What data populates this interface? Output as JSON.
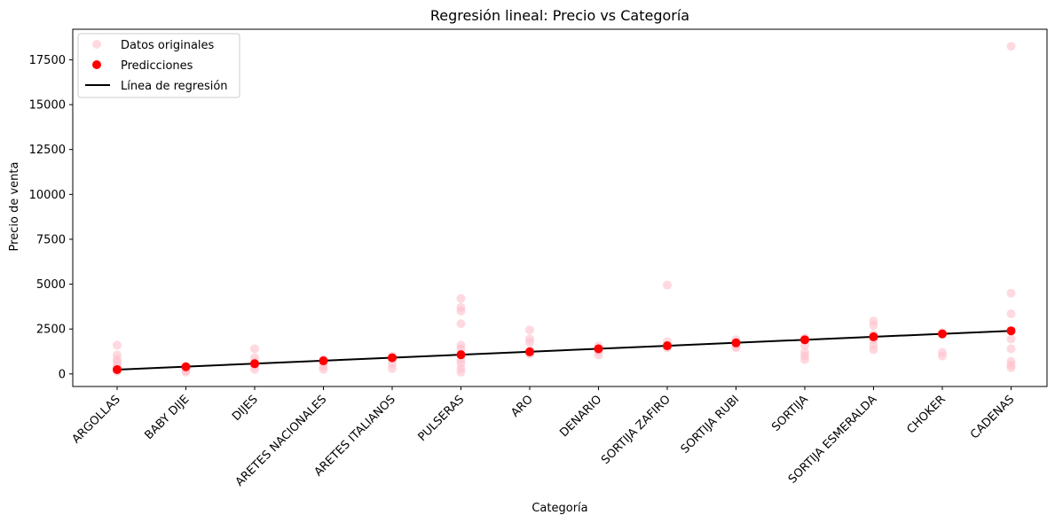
{
  "chart_data": {
    "type": "scatter",
    "title": "Regresión lineal: Precio vs Categoría",
    "xlabel": "Categoría",
    "ylabel": "Precio de venta",
    "categories": [
      "ARGOLLAS",
      "BABY DIJE",
      "DIJES",
      "ARETES NACIONALES",
      "ARETES ITALIANOS",
      "PULSERAS",
      "ARO",
      "DENARIO",
      "SORTIJA ZAFIRO",
      "SORTIJA RUBI",
      "SORTIJA",
      "SORTIJA ESMERALDA",
      "CHOKER",
      "CADENAS"
    ],
    "ylim": [
      -700,
      19200
    ],
    "yticks": [
      0,
      2500,
      5000,
      7500,
      10000,
      12500,
      15000,
      17500
    ],
    "ytick_labels": [
      "0",
      "2500",
      "5000",
      "7500",
      "10000",
      "12500",
      "15000",
      "17500"
    ],
    "grid": false,
    "legend_position": "top-left",
    "colors": {
      "original": "#ffc0cb",
      "prediction": "#ff0000",
      "line": "#000000"
    },
    "series": [
      {
        "name": "Datos originales",
        "kind": "scatter",
        "points": [
          [
            "ARGOLLAS",
            1600
          ],
          [
            "ARGOLLAS",
            1050
          ],
          [
            "ARGOLLAS",
            800
          ],
          [
            "ARGOLLAS",
            650
          ],
          [
            "ARGOLLAS",
            450
          ],
          [
            "ARGOLLAS",
            300
          ],
          [
            "ARGOLLAS",
            150
          ],
          [
            "BABY DIJE",
            420
          ],
          [
            "BABY DIJE",
            300
          ],
          [
            "BABY DIJE",
            180
          ],
          [
            "BABY DIJE",
            100
          ],
          [
            "DIJES",
            1400
          ],
          [
            "DIJES",
            900
          ],
          [
            "DIJES",
            650
          ],
          [
            "DIJES",
            450
          ],
          [
            "DIJES",
            250
          ],
          [
            "ARETES NACIONALES",
            800
          ],
          [
            "ARETES NACIONALES",
            600
          ],
          [
            "ARETES NACIONALES",
            400
          ],
          [
            "ARETES NACIONALES",
            250
          ],
          [
            "ARETES ITALIANOS",
            1000
          ],
          [
            "ARETES ITALIANOS",
            800
          ],
          [
            "ARETES ITALIANOS",
            550
          ],
          [
            "ARETES ITALIANOS",
            300
          ],
          [
            "PULSERAS",
            4200
          ],
          [
            "PULSERAS",
            3700
          ],
          [
            "PULSERAS",
            3500
          ],
          [
            "PULSERAS",
            2800
          ],
          [
            "PULSERAS",
            1600
          ],
          [
            "PULSERAS",
            1400
          ],
          [
            "PULSERAS",
            1100
          ],
          [
            "PULSERAS",
            800
          ],
          [
            "PULSERAS",
            600
          ],
          [
            "PULSERAS",
            300
          ],
          [
            "PULSERAS",
            100
          ],
          [
            "ARO",
            2450
          ],
          [
            "ARO",
            1950
          ],
          [
            "ARO",
            1750
          ],
          [
            "ARO",
            1300
          ],
          [
            "ARO",
            1100
          ],
          [
            "DENARIO",
            1550
          ],
          [
            "DENARIO",
            1400
          ],
          [
            "DENARIO",
            1250
          ],
          [
            "DENARIO",
            1050
          ],
          [
            "SORTIJA ZAFIRO",
            4950
          ],
          [
            "SORTIJA ZAFIRO",
            1800
          ],
          [
            "SORTIJA ZAFIRO",
            1550
          ],
          [
            "SORTIJA ZAFIRO",
            1450
          ],
          [
            "SORTIJA RUBI",
            1900
          ],
          [
            "SORTIJA RUBI",
            1750
          ],
          [
            "SORTIJA RUBI",
            1550
          ],
          [
            "SORTIJA RUBI",
            1450
          ],
          [
            "SORTIJA",
            2000
          ],
          [
            "SORTIJA",
            1600
          ],
          [
            "SORTIJA",
            1200
          ],
          [
            "SORTIJA",
            1000
          ],
          [
            "SORTIJA",
            800
          ],
          [
            "SORTIJA ESMERALDA",
            2950
          ],
          [
            "SORTIJA ESMERALDA",
            2700
          ],
          [
            "SORTIJA ESMERALDA",
            2200
          ],
          [
            "SORTIJA ESMERALDA",
            1900
          ],
          [
            "SORTIJA ESMERALDA",
            1600
          ],
          [
            "SORTIJA ESMERALDA",
            1350
          ],
          [
            "CHOKER",
            2300
          ],
          [
            "CHOKER",
            1200
          ],
          [
            "CHOKER",
            1000
          ],
          [
            "CADENAS",
            18250
          ],
          [
            "CADENAS",
            4500
          ],
          [
            "CADENAS",
            3350
          ],
          [
            "CADENAS",
            2400
          ],
          [
            "CADENAS",
            1950
          ],
          [
            "CADENAS",
            1400
          ],
          [
            "CADENAS",
            700
          ],
          [
            "CADENAS",
            500
          ],
          [
            "CADENAS",
            350
          ]
        ]
      },
      {
        "name": "Predicciones",
        "kind": "scatter",
        "points": [
          [
            "ARGOLLAS",
            240
          ],
          [
            "BABY DIJE",
            400
          ],
          [
            "DIJES",
            570
          ],
          [
            "ARETES NACIONALES",
            730
          ],
          [
            "ARETES ITALIANOS",
            900
          ],
          [
            "PULSERAS",
            1070
          ],
          [
            "ARO",
            1230
          ],
          [
            "DENARIO",
            1400
          ],
          [
            "SORTIJA ZAFIRO",
            1570
          ],
          [
            "SORTIJA RUBI",
            1730
          ],
          [
            "SORTIJA",
            1900
          ],
          [
            "SORTIJA ESMERALDA",
            2070
          ],
          [
            "CHOKER",
            2230
          ],
          [
            "CADENAS",
            2400
          ]
        ]
      },
      {
        "name": "Línea de regresión",
        "kind": "line",
        "x": [
          "ARGOLLAS",
          "CADENAS"
        ],
        "y": [
          240,
          2400
        ]
      }
    ]
  }
}
